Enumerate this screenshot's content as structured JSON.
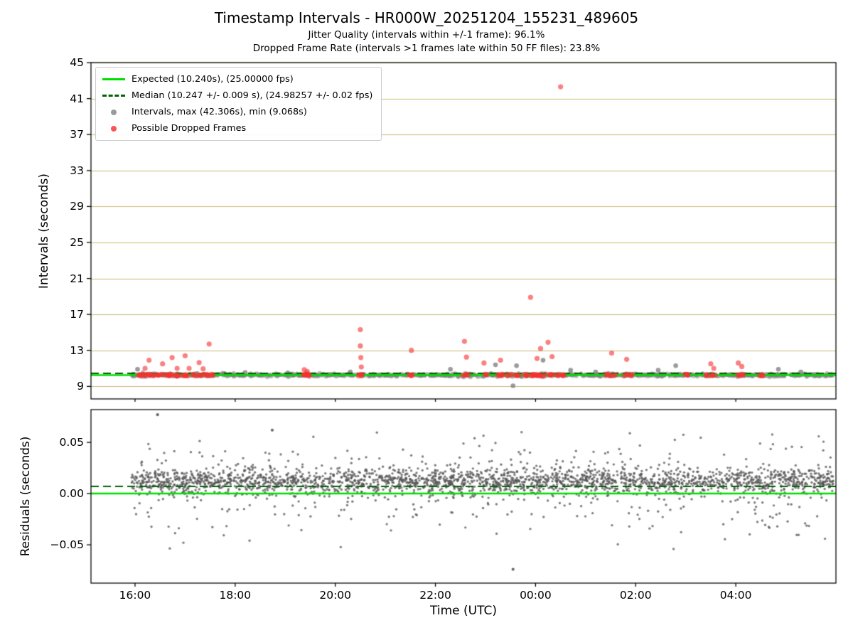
{
  "figure": {
    "title": "Timestamp Intervals - HR000W_20251204_155231_489605",
    "subtitle_line1": "Jitter Quality (intervals within +/-1 frame): 96.1%",
    "subtitle_line2": "Dropped Frame Rate (intervals >1 frames late within 50 FF files): 23.8%"
  },
  "chart_data": [
    {
      "type": "scatter",
      "title": "Timestamp Intervals - HR000W_20251204_155231_489605",
      "ylabel": "Intervals (seconds)",
      "ylim": [
        7.6,
        45
      ],
      "yticks": [
        9,
        13,
        17,
        21,
        25,
        29,
        33,
        37,
        41,
        45
      ],
      "xlim_hours": [
        15.12,
        30.0
      ],
      "grid_on": true,
      "grid_color": "#ccb974",
      "expected": {
        "value": 10.24,
        "fps": "25.00000",
        "color": "#00dd00",
        "label": "Expected (10.240s), (25.00000 fps)"
      },
      "median": {
        "value": 10.247,
        "plus_minus": 0.009,
        "fps": "24.98257",
        "fps_pm": 0.02,
        "color": "#006400",
        "label": "Median (10.247 +/- 0.009 s), (24.98257 +/- 0.02 fps)"
      },
      "stats": {
        "max_interval_s": 42.306,
        "min_interval_s": 9.068
      },
      "legend": [
        {
          "label": "Expected (10.240s), (25.00000 fps)",
          "marker": "solid-line",
          "color": "#00dd00"
        },
        {
          "label": "Median (10.247 +/- 0.009 s), (24.98257 +/- 0.02 fps)",
          "marker": "dashed-line",
          "color": "#006400"
        },
        {
          "label": "Intervals, max (42.306s), min (9.068s)",
          "marker": "dot",
          "color": "#9a9a9a"
        },
        {
          "label": "Possible Dropped Frames",
          "marker": "dot",
          "color": "#f85555"
        }
      ],
      "gray_color": "rgba(128,128,128,0.5)",
      "red_color": "rgba(247,50,50,0.55)",
      "baseline_band": {
        "x_start": 15.93,
        "x_end": 29.95,
        "count": 1150,
        "mean": 10.26,
        "spread": 0.08,
        "seed": 12345
      },
      "gray_outliers": [
        [
          16.05,
          10.9
        ],
        [
          18.2,
          10.55
        ],
        [
          19.05,
          10.5
        ],
        [
          20.3,
          10.6
        ],
        [
          22.3,
          10.9
        ],
        [
          23.2,
          11.4
        ],
        [
          23.55,
          9.068
        ],
        [
          23.62,
          11.3
        ],
        [
          24.15,
          11.9
        ],
        [
          24.7,
          10.8
        ],
        [
          25.2,
          10.6
        ],
        [
          26.45,
          10.8
        ],
        [
          26.8,
          11.3
        ],
        [
          28.85,
          10.9
        ],
        [
          29.3,
          10.6
        ]
      ],
      "red_clusters": [
        [
          16.15,
          0.1,
          10
        ],
        [
          16.35,
          0.12,
          12
        ],
        [
          16.6,
          0.1,
          8
        ],
        [
          16.8,
          0.12,
          10
        ],
        [
          17.0,
          0.1,
          8
        ],
        [
          17.3,
          0.15,
          14
        ],
        [
          17.5,
          0.06,
          6
        ],
        [
          19.4,
          0.09,
          10
        ],
        [
          20.5,
          0.05,
          6
        ],
        [
          21.5,
          0.05,
          5
        ],
        [
          22.6,
          0.07,
          6
        ],
        [
          23.0,
          0.04,
          4
        ],
        [
          23.35,
          0.12,
          10
        ],
        [
          23.6,
          0.1,
          8
        ],
        [
          23.9,
          0.12,
          12
        ],
        [
          24.1,
          0.1,
          10
        ],
        [
          24.35,
          0.12,
          10
        ],
        [
          24.55,
          0.05,
          5
        ],
        [
          25.5,
          0.1,
          8
        ],
        [
          25.85,
          0.1,
          7
        ],
        [
          27.0,
          0.05,
          5
        ],
        [
          27.5,
          0.1,
          8
        ],
        [
          28.1,
          0.08,
          7
        ],
        [
          28.5,
          0.05,
          5
        ]
      ],
      "red_outliers": [
        [
          16.2,
          11.0
        ],
        [
          16.28,
          11.9
        ],
        [
          16.55,
          11.5
        ],
        [
          16.74,
          12.2
        ],
        [
          16.84,
          11.0
        ],
        [
          17.0,
          12.4
        ],
        [
          17.08,
          11.0
        ],
        [
          17.28,
          11.65
        ],
        [
          17.36,
          10.95
        ],
        [
          17.48,
          13.7
        ],
        [
          19.38,
          10.85
        ],
        [
          19.44,
          10.65
        ],
        [
          20.5,
          15.3
        ],
        [
          20.5,
          13.5
        ],
        [
          20.51,
          12.2
        ],
        [
          20.52,
          11.15
        ],
        [
          21.52,
          13.0
        ],
        [
          22.58,
          14.0
        ],
        [
          22.62,
          12.25
        ],
        [
          22.97,
          11.6
        ],
        [
          23.3,
          11.9
        ],
        [
          23.9,
          18.9
        ],
        [
          24.03,
          12.1
        ],
        [
          24.1,
          13.2
        ],
        [
          24.25,
          13.9
        ],
        [
          24.33,
          12.3
        ],
        [
          24.5,
          42.306
        ],
        [
          25.52,
          12.7
        ],
        [
          25.82,
          12.0
        ],
        [
          27.5,
          11.5
        ],
        [
          27.56,
          11.0
        ],
        [
          28.05,
          11.6
        ],
        [
          28.12,
          11.2
        ]
      ]
    },
    {
      "type": "scatter",
      "ylabel": "Residuals (seconds)",
      "xlabel": "Time (UTC)",
      "ylim": [
        -0.0875,
        0.082
      ],
      "yticks": [
        {
          "value": -0.05,
          "label": "−0.05"
        },
        {
          "value": 0.0,
          "label": "0.00"
        },
        {
          "value": 0.05,
          "label": "0.05"
        }
      ],
      "xticks": [
        {
          "hour": 16,
          "label": "16:00"
        },
        {
          "hour": 18,
          "label": "18:00"
        },
        {
          "hour": 20,
          "label": "20:00"
        },
        {
          "hour": 22,
          "label": "22:00"
        },
        {
          "hour": 24,
          "label": "00:00"
        },
        {
          "hour": 26,
          "label": "02:00"
        },
        {
          "hour": 28,
          "label": "04:00"
        }
      ],
      "zero_line": {
        "value": 0.0,
        "color": "#00dd00"
      },
      "median_line": {
        "value": 0.007,
        "color": "#006400"
      },
      "point_color": "rgba(85,85,85,0.75)",
      "band": {
        "x_start": 15.93,
        "x_end": 29.97,
        "count": 2600,
        "mean": 0.012,
        "std": 0.0062,
        "tail_frac": 0.18,
        "tail_mean": 0.006,
        "tail_std": 0.024,
        "clip_low": -0.058,
        "clip_high": 0.063,
        "seed": 99
      },
      "outliers": [
        [
          16.45,
          0.077
        ],
        [
          18.74,
          0.062
        ],
        [
          23.55,
          -0.074
        ]
      ]
    }
  ]
}
